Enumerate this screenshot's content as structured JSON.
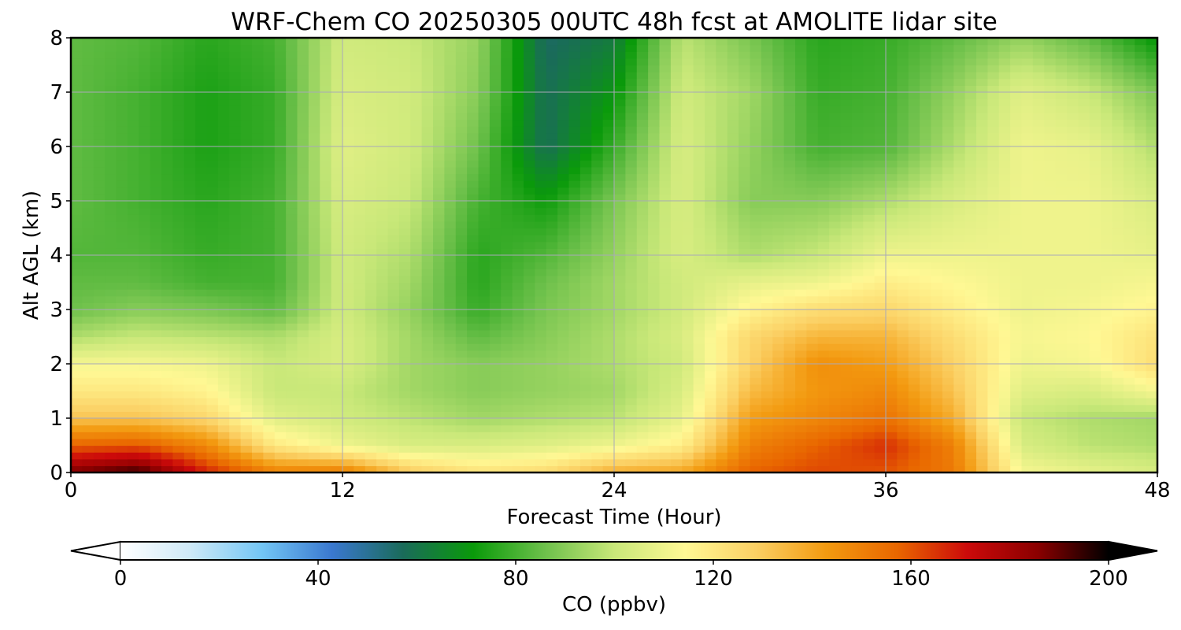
{
  "chart_data": {
    "type": "heatmap",
    "title": "WRF-Chem CO  20250305 00UTC 48h fcst at AMOLITE lidar site",
    "xlabel": "Forecast Time (Hour)",
    "ylabel": "Alt AGL (km)",
    "xlim": [
      0,
      48
    ],
    "ylim": [
      0,
      8
    ],
    "x_ticks": [
      "0",
      "12",
      "24",
      "36",
      "48"
    ],
    "y_ticks": [
      "0",
      "1",
      "2",
      "3",
      "4",
      "5",
      "6",
      "7",
      "8"
    ],
    "grid": true,
    "colorbar": {
      "label": "CO  (ppbv)",
      "range": [
        0,
        200
      ],
      "extend": "both",
      "ticks": [
        "0",
        "40",
        "80",
        "120",
        "160",
        "200"
      ],
      "colors": [
        "#ffffff",
        "#cde9f7",
        "#73c6f5",
        "#3a78cf",
        "#1a6b5a",
        "#0a9a0a",
        "#6cc04a",
        "#c9e879",
        "#fff894",
        "#fbd064",
        "#f39a10",
        "#e96700",
        "#cc0a0a",
        "#8a0000",
        "#000000"
      ]
    },
    "x_hours": [
      0,
      3,
      6,
      9,
      12,
      15,
      18,
      21,
      24,
      27,
      30,
      33,
      36,
      39,
      42,
      45,
      48
    ],
    "y_km": [
      0,
      0.5,
      1,
      1.5,
      2,
      2.5,
      3,
      3.5,
      4,
      5,
      6,
      7,
      8
    ],
    "z_ppbv": [
      [
        188,
        195,
        168,
        150,
        152,
        130,
        122,
        125,
        138,
        140,
        158,
        162,
        160,
        152,
        112,
        108,
        104
      ],
      [
        158,
        160,
        148,
        120,
        110,
        104,
        104,
        106,
        110,
        118,
        150,
        158,
        166,
        150,
        104,
        98,
        96
      ],
      [
        132,
        132,
        126,
        106,
        102,
        98,
        94,
        96,
        98,
        108,
        142,
        148,
        154,
        138,
        100,
        96,
        94
      ],
      [
        120,
        120,
        116,
        100,
        100,
        94,
        90,
        92,
        94,
        104,
        134,
        144,
        148,
        132,
        106,
        104,
        112
      ],
      [
        112,
        112,
        110,
        100,
        104,
        94,
        90,
        92,
        96,
        102,
        128,
        146,
        142,
        128,
        110,
        112,
        124
      ],
      [
        96,
        100,
        98,
        96,
        104,
        94,
        84,
        90,
        96,
        104,
        126,
        136,
        136,
        124,
        112,
        114,
        122
      ],
      [
        86,
        90,
        88,
        84,
        102,
        92,
        78,
        88,
        94,
        102,
        116,
        124,
        126,
        118,
        110,
        112,
        116
      ],
      [
        84,
        84,
        80,
        80,
        102,
        94,
        76,
        86,
        94,
        102,
        108,
        110,
        118,
        114,
        110,
        110,
        112
      ],
      [
        82,
        82,
        78,
        80,
        102,
        96,
        76,
        82,
        92,
        104,
        96,
        100,
        110,
        110,
        110,
        110,
        108
      ],
      [
        84,
        80,
        76,
        80,
        104,
        100,
        80,
        72,
        88,
        104,
        90,
        90,
        96,
        104,
        110,
        110,
        104
      ],
      [
        84,
        80,
        74,
        78,
        106,
        102,
        86,
        58,
        78,
        104,
        92,
        80,
        82,
        96,
        110,
        108,
        96
      ],
      [
        84,
        80,
        74,
        78,
        104,
        102,
        90,
        58,
        70,
        102,
        94,
        78,
        80,
        92,
        106,
        100,
        88
      ],
      [
        84,
        82,
        76,
        80,
        102,
        100,
        92,
        56,
        62,
        98,
        88,
        76,
        78,
        84,
        92,
        84,
        70
      ]
    ]
  }
}
